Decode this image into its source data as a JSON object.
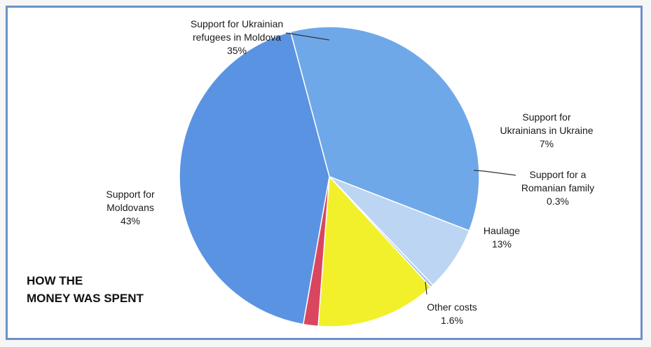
{
  "chart_data": {
    "type": "pie",
    "title_lines": [
      "HOW THE",
      "MONEY WAS SPENT"
    ],
    "slices": [
      {
        "key": "ukr-refugees-moldova",
        "lines": [
          "Support for Ukrainian",
          "refugees in Moldova"
        ],
        "pct_label": "35%",
        "value": 35,
        "color": "#6fa8e8"
      },
      {
        "key": "ukrainians-in-ukraine",
        "lines": [
          "Support for",
          "Ukrainians in Ukraine"
        ],
        "pct_label": "7%",
        "value": 7,
        "color": "#bcd5f2"
      },
      {
        "key": "romanian-family",
        "lines": [
          "Support for a",
          "Romanian family"
        ],
        "pct_label": "0.3%",
        "value": 0.3,
        "color": "#9cc0ea"
      },
      {
        "key": "haulage",
        "lines": [
          "Haulage"
        ],
        "pct_label": "13%",
        "value": 13,
        "color": "#f2f02a"
      },
      {
        "key": "other-costs",
        "lines": [
          "Other costs"
        ],
        "pct_label": "1.6%",
        "value": 1.6,
        "color": "#d9465f"
      },
      {
        "key": "moldovans",
        "lines": [
          "Support for",
          "Moldovans"
        ],
        "pct_label": "43%",
        "value": 43,
        "color": "#5a93e2"
      }
    ],
    "start_angle_deg": 255,
    "direction": "clockwise"
  }
}
